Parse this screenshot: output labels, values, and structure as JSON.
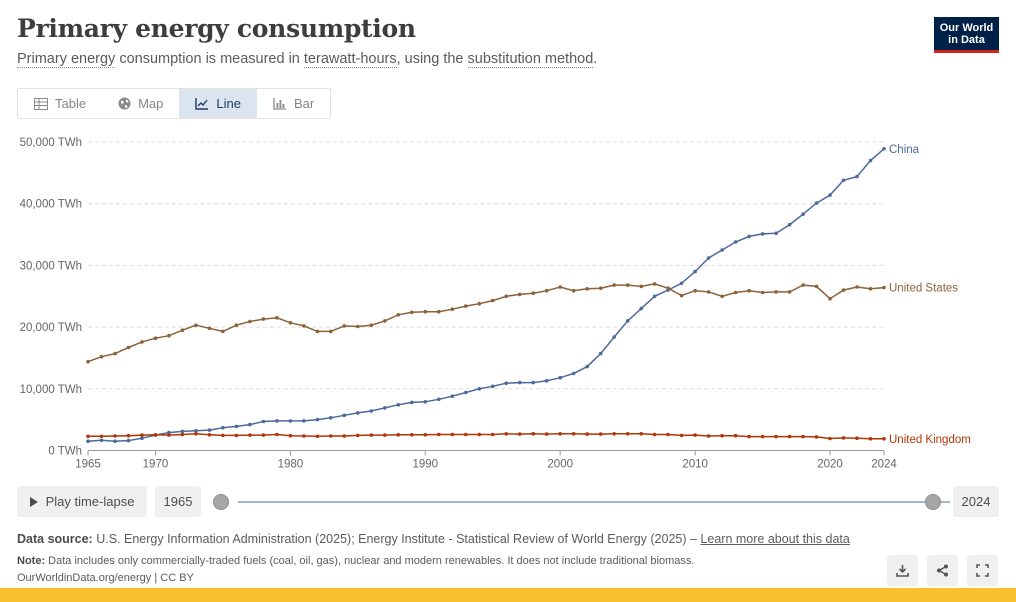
{
  "header": {
    "title": "Primary energy consumption",
    "subtitle_parts": {
      "p1": "Primary energy",
      "p2": " consumption is measured in ",
      "p3": "terawatt-hours",
      "p4": ", using the ",
      "p5": "substitution method",
      "p6": "."
    },
    "logo_line1": "Our World",
    "logo_line2": "in Data"
  },
  "tabs": [
    {
      "label": "Table",
      "icon": "table-icon",
      "active": false
    },
    {
      "label": "Map",
      "icon": "globe-icon",
      "active": false
    },
    {
      "label": "Line",
      "icon": "line-chart-icon",
      "active": true
    },
    {
      "label": "Bar",
      "icon": "bar-chart-icon",
      "active": false
    }
  ],
  "controls": {
    "play_label": "Play time-lapse",
    "start_year": "1965",
    "end_year": "2024"
  },
  "footer": {
    "source_label": "Data source:",
    "source_text": " U.S. Energy Information Administration (2025); Energy Institute - Statistical Review of World Energy (2025) – ",
    "source_link": "Learn more about this data",
    "note_label": "Note:",
    "note_text": " Data includes only commercially-traded fuels (coal, oil, gas), nuclear and modern renewables. It does not include traditional biomass.",
    "url_text": "OurWorldinData.org/energy | CC BY"
  },
  "colors": {
    "China": "#4c6a9c",
    "United States": "#8c6239",
    "United Kingdom": "#b13507",
    "grid": "#dddddd",
    "accent": "#fbc02d"
  },
  "chart_data": {
    "type": "line",
    "title": "",
    "xlabel": "",
    "ylabel": "",
    "xlim": [
      1965,
      2024
    ],
    "ylim": [
      0,
      50000
    ],
    "grid": true,
    "legend": "right-end labels",
    "yticks": [
      {
        "value": 0,
        "label": "0 TWh"
      },
      {
        "value": 10000,
        "label": "10,000 TWh"
      },
      {
        "value": 20000,
        "label": "20,000 TWh"
      },
      {
        "value": 30000,
        "label": "30,000 TWh"
      },
      {
        "value": 40000,
        "label": "40,000 TWh"
      },
      {
        "value": 50000,
        "label": "50,000 TWh"
      }
    ],
    "xticks": [
      {
        "value": 1965,
        "label": "1965"
      },
      {
        "value": 1970,
        "label": "1970"
      },
      {
        "value": 1980,
        "label": "1980"
      },
      {
        "value": 1990,
        "label": "1990"
      },
      {
        "value": 2000,
        "label": "2000"
      },
      {
        "value": 2010,
        "label": "2010"
      },
      {
        "value": 2020,
        "label": "2020"
      },
      {
        "value": 2024,
        "label": "2024"
      }
    ],
    "x": [
      1965,
      1966,
      1967,
      1968,
      1969,
      1970,
      1971,
      1972,
      1973,
      1974,
      1975,
      1976,
      1977,
      1978,
      1979,
      1980,
      1981,
      1982,
      1983,
      1984,
      1985,
      1986,
      1987,
      1988,
      1989,
      1990,
      1991,
      1992,
      1993,
      1994,
      1995,
      1996,
      1997,
      1998,
      1999,
      2000,
      2001,
      2002,
      2003,
      2004,
      2005,
      2006,
      2007,
      2008,
      2009,
      2010,
      2011,
      2012,
      2013,
      2014,
      2015,
      2016,
      2017,
      2018,
      2019,
      2020,
      2021,
      2022,
      2023,
      2024
    ],
    "series": [
      {
        "name": "China",
        "values": [
          1500,
          1650,
          1500,
          1600,
          2000,
          2500,
          2900,
          3100,
          3200,
          3300,
          3700,
          3900,
          4200,
          4700,
          4800,
          4800,
          4800,
          5000,
          5300,
          5700,
          6100,
          6400,
          6900,
          7400,
          7800,
          7900,
          8300,
          8800,
          9400,
          10000,
          10400,
          10900,
          11000,
          11000,
          11300,
          11800,
          12500,
          13600,
          15700,
          18400,
          21000,
          23000,
          25000,
          26000,
          27100,
          29000,
          31200,
          32500,
          33800,
          34700,
          35100,
          35200,
          36600,
          38300,
          40100,
          41400,
          43800,
          44400,
          47000,
          48900
        ]
      },
      {
        "name": "United States",
        "values": [
          14400,
          15200,
          15700,
          16700,
          17600,
          18200,
          18600,
          19500,
          20300,
          19800,
          19300,
          20300,
          20900,
          21300,
          21500,
          20700,
          20200,
          19300,
          19300,
          20200,
          20100,
          20300,
          21000,
          22000,
          22400,
          22500,
          22500,
          22900,
          23400,
          23800,
          24300,
          25000,
          25300,
          25500,
          25900,
          26500,
          25900,
          26200,
          26300,
          26800,
          26800,
          26600,
          27000,
          26300,
          25100,
          25900,
          25700,
          25000,
          25600,
          25900,
          25600,
          25700,
          25700,
          26800,
          26600,
          24600,
          26000,
          26500,
          26200,
          26400
        ]
      },
      {
        "name": "United Kingdom",
        "values": [
          2300,
          2300,
          2350,
          2400,
          2500,
          2550,
          2500,
          2600,
          2700,
          2550,
          2450,
          2450,
          2500,
          2500,
          2600,
          2400,
          2350,
          2300,
          2350,
          2350,
          2450,
          2500,
          2500,
          2550,
          2550,
          2550,
          2600,
          2600,
          2600,
          2600,
          2600,
          2700,
          2650,
          2700,
          2650,
          2700,
          2700,
          2650,
          2650,
          2700,
          2700,
          2700,
          2600,
          2600,
          2450,
          2500,
          2350,
          2400,
          2400,
          2250,
          2250,
          2250,
          2250,
          2250,
          2200,
          1950,
          2050,
          2000,
          1900,
          1900
        ]
      }
    ]
  }
}
